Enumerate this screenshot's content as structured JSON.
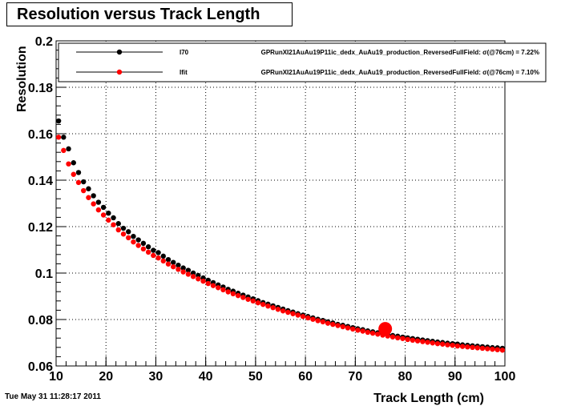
{
  "chart_data": {
    "type": "scatter",
    "title": "Resolution versus Track Length",
    "xlabel": "Track Length (cm)",
    "ylabel": "Resolution",
    "xlim": [
      10,
      100
    ],
    "ylim": [
      0.06,
      0.2
    ],
    "grid": true,
    "legend_position": "top",
    "x_ticks": [
      "10",
      "20",
      "30",
      "40",
      "50",
      "60",
      "70",
      "80",
      "90",
      "100"
    ],
    "y_ticks": [
      "0.06",
      "0.08",
      "0.1",
      "0.12",
      "0.14",
      "0.16",
      "0.18",
      "0.2"
    ],
    "highlight_point": {
      "x": 76,
      "y": 0.076,
      "color": "#ff0000"
    },
    "series": [
      {
        "name": "I70",
        "description": "GPRunXI21AuAu19P11ic_dedx_AuAu19_production_ReversedFullField: σ(@76cm) = 7.22%",
        "color": "#000000",
        "x": [
          10.5,
          11.5,
          12.5,
          13.5,
          14.5,
          15.5,
          16.5,
          17.5,
          18.5,
          19.5,
          20.5,
          21.5,
          22.5,
          23.5,
          24.5,
          25.5,
          26.5,
          27.5,
          28.5,
          29.5,
          30.5,
          31.5,
          32.5,
          33.5,
          34.5,
          35.5,
          36.5,
          37.5,
          38.5,
          39.5,
          40.5,
          41.5,
          42.5,
          43.5,
          44.5,
          45.5,
          46.5,
          47.5,
          48.5,
          49.5,
          50.5,
          51.5,
          52.5,
          53.5,
          54.5,
          55.5,
          56.5,
          57.5,
          58.5,
          59.5,
          60.5,
          61.5,
          62.5,
          63.5,
          64.5,
          65.5,
          66.5,
          67.5,
          68.5,
          69.5,
          70.5,
          71.5,
          72.5,
          73.5,
          74.5,
          75.5,
          76.5,
          77.5,
          78.5,
          79.5,
          80.5,
          81.5,
          82.5,
          83.5,
          84.5,
          85.5,
          86.5,
          87.5,
          88.5,
          89.5,
          90.5,
          91.5,
          92.5,
          93.5,
          94.5,
          95.5,
          96.5,
          97.5,
          98.5,
          99.5
        ],
        "y": [
          0.1655,
          0.1585,
          0.1535,
          0.1475,
          0.1433,
          0.1393,
          0.1363,
          0.1333,
          0.1305,
          0.1283,
          0.1258,
          0.1238,
          0.1213,
          0.1193,
          0.1178,
          0.1158,
          0.1143,
          0.1128,
          0.1113,
          0.1098,
          0.1088,
          0.1073,
          0.1058,
          0.1046,
          0.1034,
          0.1022,
          0.1012,
          0.1,
          0.099,
          0.0979,
          0.0969,
          0.0959,
          0.0949,
          0.094,
          0.093,
          0.0922,
          0.0913,
          0.0905,
          0.0897,
          0.0889,
          0.0881,
          0.0873,
          0.0866,
          0.0859,
          0.0852,
          0.0845,
          0.0838,
          0.0832,
          0.0825,
          0.0819,
          0.0813,
          0.0807,
          0.0801,
          0.0796,
          0.079,
          0.0785,
          0.0779,
          0.0775,
          0.077,
          0.0765,
          0.076,
          0.0756,
          0.0751,
          0.0747,
          0.0743,
          0.0739,
          0.0735,
          0.0731,
          0.0728,
          0.0724,
          0.0721,
          0.0718,
          0.0715,
          0.0712,
          0.0709,
          0.0706,
          0.0703,
          0.0701,
          0.0698,
          0.0696,
          0.0694,
          0.0691,
          0.0689,
          0.0687,
          0.0685,
          0.0683,
          0.0681,
          0.0679,
          0.0678,
          0.0676
        ]
      },
      {
        "name": "Ifit",
        "description": "GPRunXI21AuAu19P11ic_dedx_AuAu19_production_ReversedFullField: σ(@76cm) = 7.10%",
        "color": "#ff0000",
        "x": [
          10.5,
          11.5,
          12.5,
          13.5,
          14.5,
          15.5,
          16.5,
          17.5,
          18.5,
          19.5,
          20.5,
          21.5,
          22.5,
          23.5,
          24.5,
          25.5,
          26.5,
          27.5,
          28.5,
          29.5,
          30.5,
          31.5,
          32.5,
          33.5,
          34.5,
          35.5,
          36.5,
          37.5,
          38.5,
          39.5,
          40.5,
          41.5,
          42.5,
          43.5,
          44.5,
          45.5,
          46.5,
          47.5,
          48.5,
          49.5,
          50.5,
          51.5,
          52.5,
          53.5,
          54.5,
          55.5,
          56.5,
          57.5,
          58.5,
          59.5,
          60.5,
          61.5,
          62.5,
          63.5,
          64.5,
          65.5,
          66.5,
          67.5,
          68.5,
          69.5,
          70.5,
          71.5,
          72.5,
          73.5,
          74.5,
          75.5,
          76.5,
          77.5,
          78.5,
          79.5,
          80.5,
          81.5,
          82.5,
          83.5,
          84.5,
          85.5,
          86.5,
          87.5,
          88.5,
          89.5,
          90.5,
          91.5,
          92.5,
          93.5,
          94.5,
          95.5,
          96.5,
          97.5,
          98.5,
          99.5
        ],
        "y": [
          0.1585,
          0.1528,
          0.147,
          0.1425,
          0.139,
          0.1355,
          0.1325,
          0.1298,
          0.1272,
          0.125,
          0.1228,
          0.1208,
          0.1186,
          0.1168,
          0.1152,
          0.1134,
          0.1119,
          0.1104,
          0.109,
          0.1076,
          0.1065,
          0.1052,
          0.1039,
          0.1027,
          0.1016,
          0.1005,
          0.0995,
          0.0985,
          0.0975,
          0.0965,
          0.0955,
          0.0946,
          0.0937,
          0.0928,
          0.0919,
          0.0911,
          0.0903,
          0.0895,
          0.0887,
          0.088,
          0.0872,
          0.0865,
          0.0858,
          0.0851,
          0.0844,
          0.0837,
          0.0831,
          0.0825,
          0.0819,
          0.0813,
          0.0807,
          0.0801,
          0.0795,
          0.079,
          0.0784,
          0.0779,
          0.0774,
          0.0769,
          0.0764,
          0.0759,
          0.0754,
          0.075,
          0.0745,
          0.0741,
          0.0737,
          0.0733,
          0.0729,
          0.0725,
          0.0721,
          0.0718,
          0.0714,
          0.0711,
          0.0708,
          0.0705,
          0.0702,
          0.0699,
          0.0696,
          0.0694,
          0.0691,
          0.0689,
          0.0686,
          0.0684,
          0.0682,
          0.068,
          0.0678,
          0.0676,
          0.0674,
          0.0672,
          0.067,
          0.0668
        ]
      }
    ]
  },
  "timestamp": "Tue May 31 11:28:17 2011"
}
